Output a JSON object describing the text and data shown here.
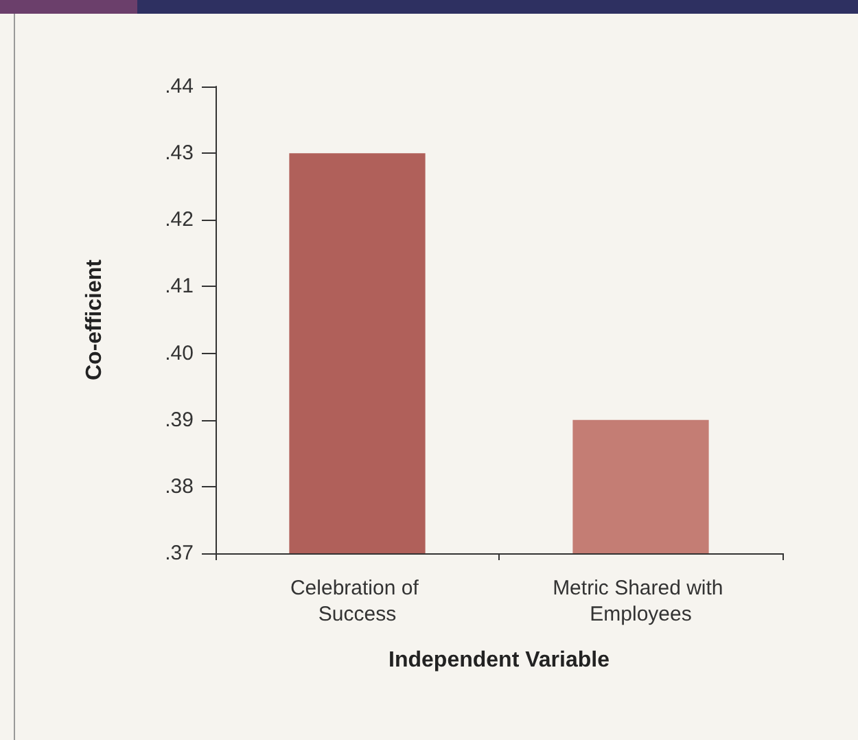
{
  "chart_data": {
    "type": "bar",
    "xlabel": "Independent Variable",
    "ylabel": "Co-efficient",
    "categories": [
      "Celebration of Success",
      "Metric Shared with Employees"
    ],
    "values": [
      0.43,
      0.39
    ],
    "colors": [
      "#b0605a",
      "#c47d74"
    ],
    "ylim": [
      0.37,
      0.44
    ],
    "yticks": [
      {
        "value": 0.37,
        "label": ".37"
      },
      {
        "value": 0.38,
        "label": ".38"
      },
      {
        "value": 0.39,
        "label": ".39"
      },
      {
        "value": 0.4,
        "label": ".40"
      },
      {
        "value": 0.41,
        "label": ".41"
      },
      {
        "value": 0.42,
        "label": ".42"
      },
      {
        "value": 0.43,
        "label": ".43"
      },
      {
        "value": 0.44,
        "label": ".44"
      }
    ],
    "grid": false
  }
}
